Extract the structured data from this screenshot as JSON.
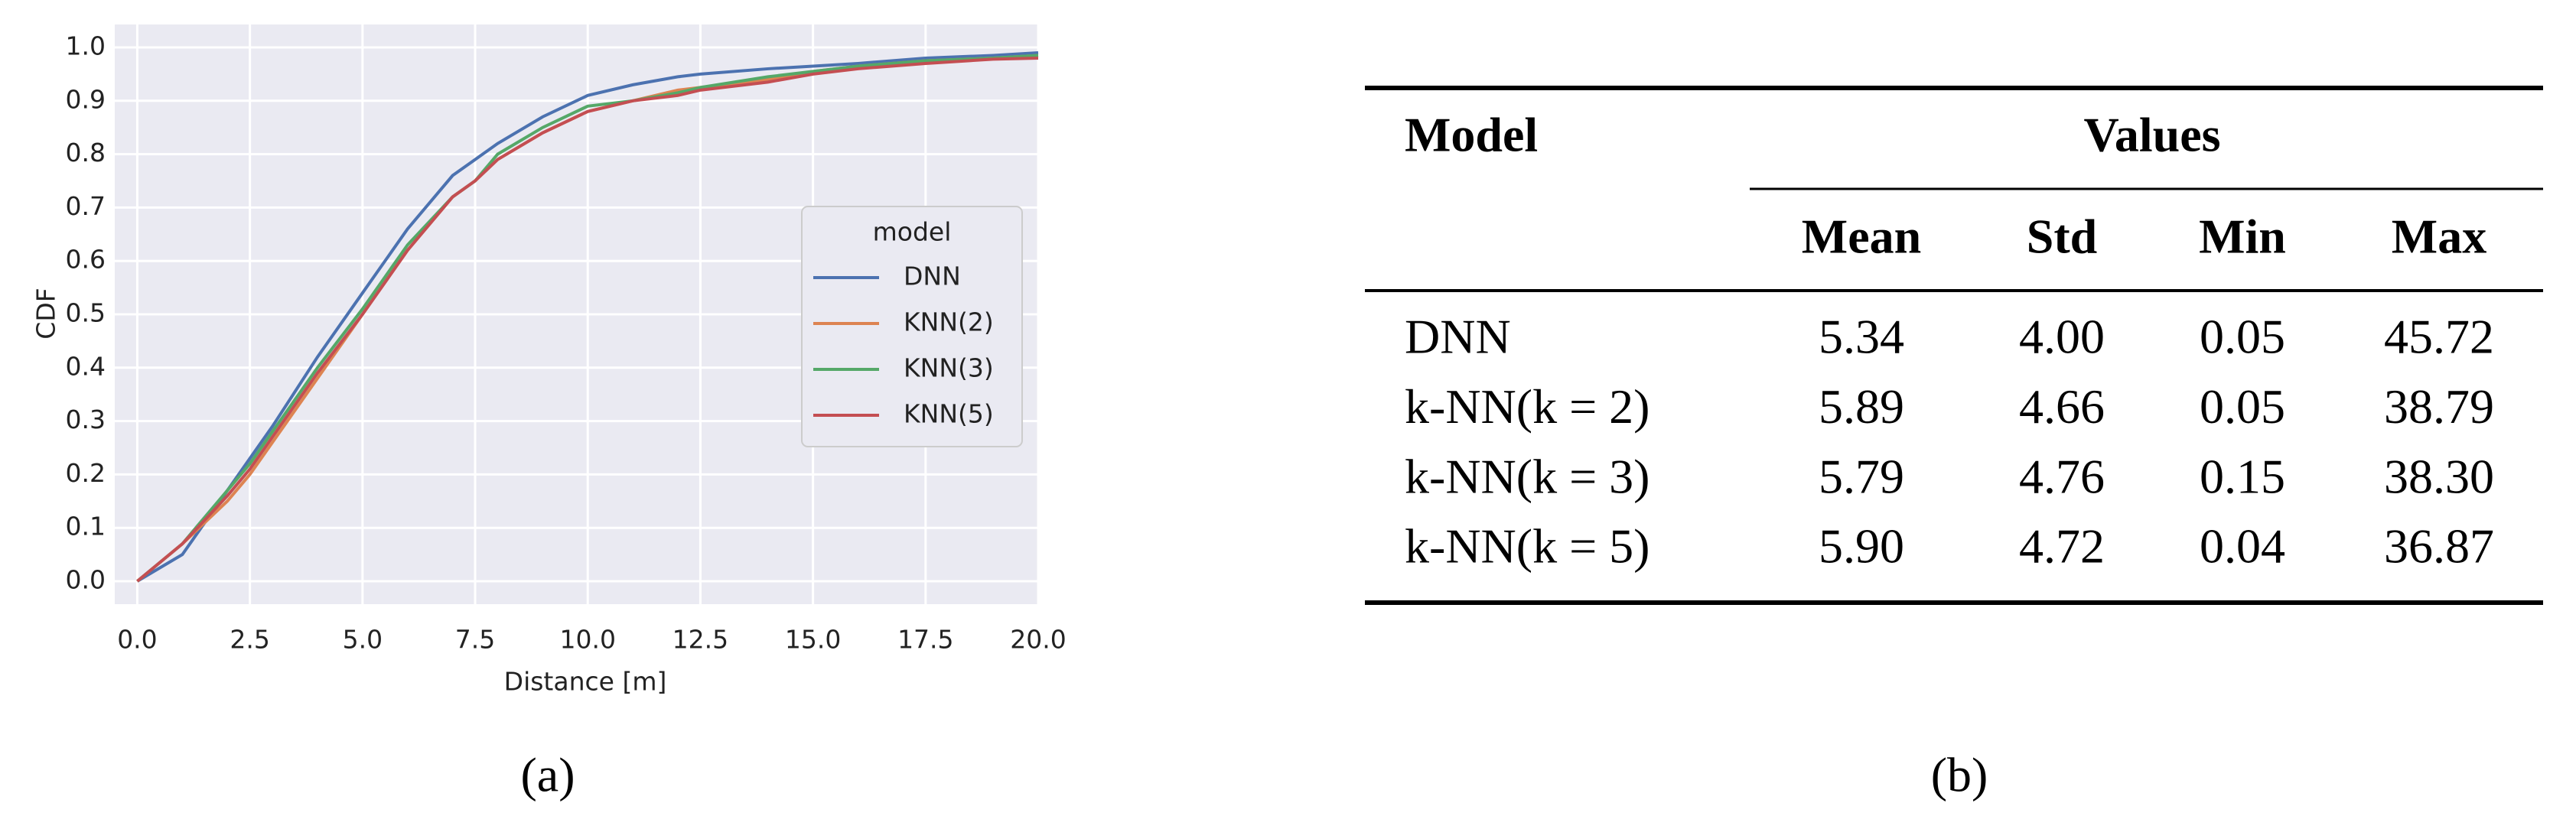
{
  "chart_data": {
    "type": "line",
    "xlabel": "Distance [m]",
    "ylabel": "CDF",
    "x": [
      0,
      1,
      2,
      2.5,
      3,
      4,
      5,
      6,
      7,
      7.5,
      8,
      9,
      10,
      11,
      12,
      12.5,
      14,
      15,
      16,
      17.5,
      19,
      20
    ],
    "series": [
      {
        "name": "DNN",
        "color": "#4c72b0",
        "values": [
          0,
          0.05,
          0.17,
          0.23,
          0.29,
          0.42,
          0.54,
          0.66,
          0.76,
          0.79,
          0.82,
          0.87,
          0.91,
          0.93,
          0.945,
          0.95,
          0.96,
          0.965,
          0.97,
          0.98,
          0.985,
          0.99
        ]
      },
      {
        "name": "KNN(2)",
        "color": "#dd8452",
        "values": [
          0,
          0.07,
          0.15,
          0.2,
          0.26,
          0.38,
          0.5,
          0.62,
          0.72,
          0.75,
          0.79,
          0.84,
          0.88,
          0.9,
          0.92,
          0.925,
          0.94,
          0.955,
          0.965,
          0.975,
          0.98,
          0.985
        ]
      },
      {
        "name": "KNN(3)",
        "color": "#55a868",
        "values": [
          0,
          0.07,
          0.17,
          0.22,
          0.28,
          0.4,
          0.51,
          0.63,
          0.72,
          0.75,
          0.8,
          0.85,
          0.89,
          0.9,
          0.915,
          0.925,
          0.945,
          0.955,
          0.965,
          0.975,
          0.98,
          0.985
        ]
      },
      {
        "name": "KNN(5)",
        "color": "#c44e52",
        "values": [
          0,
          0.07,
          0.16,
          0.21,
          0.27,
          0.39,
          0.5,
          0.62,
          0.72,
          0.75,
          0.79,
          0.84,
          0.88,
          0.9,
          0.91,
          0.92,
          0.935,
          0.95,
          0.96,
          0.97,
          0.978,
          0.98
        ]
      }
    ],
    "xlim": [
      -0.5,
      20
    ],
    "ylim": [
      -0.043,
      1.043
    ],
    "xticks": [
      {
        "value": 0,
        "label": "0.0"
      },
      2.5,
      {
        "value": 5,
        "label": "5.0"
      },
      7.5,
      {
        "value": 10,
        "label": "10.0"
      },
      12.5,
      {
        "value": 15,
        "label": "15.0"
      },
      17.5,
      {
        "value": 20,
        "label": "20.0"
      }
    ],
    "yticks": [
      {
        "value": 0,
        "label": "0.0"
      },
      0.1,
      0.2,
      0.3,
      0.4,
      0.5,
      0.6,
      0.7,
      0.8,
      0.9,
      {
        "value": 1,
        "label": "1.0"
      }
    ],
    "grid": true,
    "legend_title": "model",
    "legend_position": "right"
  },
  "table": {
    "header": "Model",
    "group_header": "Values",
    "columns": [
      "Mean",
      "Std",
      "Min",
      "Max"
    ],
    "rows": [
      [
        "DNN",
        "5.34",
        "4.00",
        "0.05",
        "45.72"
      ],
      [
        "k-NN(k = 2)",
        "5.89",
        "4.66",
        "0.05",
        "38.79"
      ],
      [
        "k-NN(k = 3)",
        "5.79",
        "4.76",
        "0.15",
        "38.30"
      ],
      [
        "k-NN(k = 5)",
        "5.90",
        "4.72",
        "0.04",
        "36.87"
      ]
    ]
  },
  "captions": [
    "(a)",
    "(b)"
  ]
}
